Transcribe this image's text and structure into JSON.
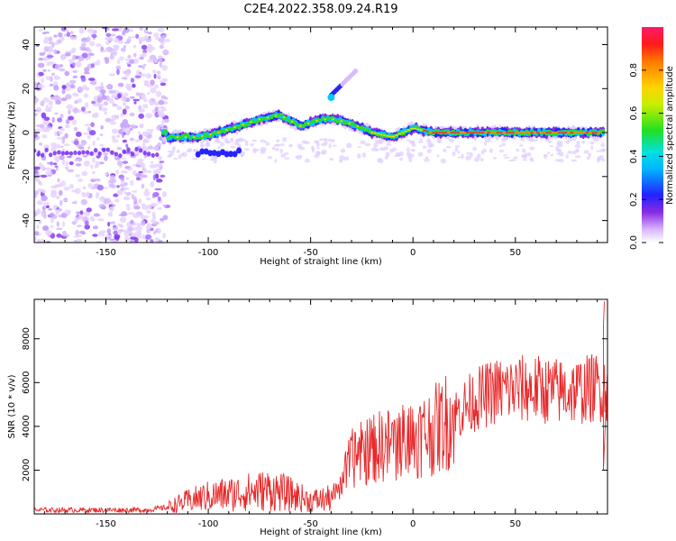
{
  "title": "C2E4.2022.358.09.24.R19",
  "chart_data": [
    {
      "type": "heatmap",
      "xlabel": "Height of straight line (km)",
      "ylabel": "Frequency (Hz)",
      "xlim": [
        -185,
        95
      ],
      "ylim": [
        -50,
        48
      ],
      "x_ticks": [
        -150,
        -100,
        -50,
        0,
        50
      ],
      "x_tick_labels": [
        "-150",
        "-100",
        "-50",
        "0",
        "50"
      ],
      "y_ticks": [
        -40,
        -20,
        0,
        20,
        40
      ],
      "y_tick_labels": [
        "-40",
        "-20",
        "0",
        "20",
        "40"
      ],
      "colorbar": {
        "label": "Normalized spectral amplitude",
        "range": [
          0,
          1
        ],
        "ticks": [
          0.0,
          0.2,
          0.4,
          0.6,
          0.8
        ],
        "tick_labels": [
          "0.0",
          "0.2",
          "0.4",
          "0.6",
          "0.8"
        ]
      },
      "ridge": {
        "description_points_km_hz": [
          [
            -120,
            -2
          ],
          [
            -105,
            -2
          ],
          [
            -95,
            0
          ],
          [
            -85,
            3
          ],
          [
            -75,
            6
          ],
          [
            -65,
            8
          ],
          [
            -55,
            3
          ],
          [
            -45,
            6
          ],
          [
            -38,
            6
          ],
          [
            -30,
            4
          ],
          [
            -20,
            0
          ],
          [
            -10,
            -2
          ],
          [
            0,
            2
          ],
          [
            10,
            0
          ],
          [
            30,
            0
          ],
          [
            50,
            0
          ],
          [
            70,
            0
          ],
          [
            92,
            0
          ]
        ],
        "branch_km_hz": [
          [
            -40,
            17
          ],
          [
            -28,
            28
          ]
        ]
      }
    },
    {
      "type": "line",
      "xlabel": "Height of straight line (km)",
      "ylabel": "SNR (10 * v/v)",
      "xlim": [
        -185,
        95
      ],
      "ylim": [
        0,
        9800
      ],
      "x_ticks": [
        -150,
        -100,
        -50,
        0,
        50
      ],
      "x_tick_labels": [
        "-150",
        "-100",
        "-50",
        "0",
        "50"
      ],
      "y_ticks": [
        2000,
        4000,
        6000,
        8000
      ],
      "y_tick_labels": [
        "2000",
        "4000",
        "6000",
        "8000"
      ],
      "series": [
        {
          "name": "SNR",
          "color": "#e8282a",
          "envelope_km_mean": [
            [
              -185,
              180
            ],
            [
              -130,
              180
            ],
            [
              -120,
              300
            ],
            [
              -110,
              600
            ],
            [
              -100,
              800
            ],
            [
              -90,
              900
            ],
            [
              -80,
              1000
            ],
            [
              -70,
              1100
            ],
            [
              -60,
              900
            ],
            [
              -50,
              600
            ],
            [
              -40,
              700
            ],
            [
              -35,
              1500
            ],
            [
              -30,
              2500
            ],
            [
              -20,
              3000
            ],
            [
              -10,
              3200
            ],
            [
              0,
              3500
            ],
            [
              10,
              3800
            ],
            [
              20,
              4500
            ],
            [
              30,
              5200
            ],
            [
              40,
              5600
            ],
            [
              50,
              5700
            ],
            [
              60,
              5700
            ],
            [
              70,
              5600
            ],
            [
              80,
              5600
            ],
            [
              90,
              5800
            ],
            [
              95,
              5800
            ]
          ]
        }
      ]
    }
  ]
}
